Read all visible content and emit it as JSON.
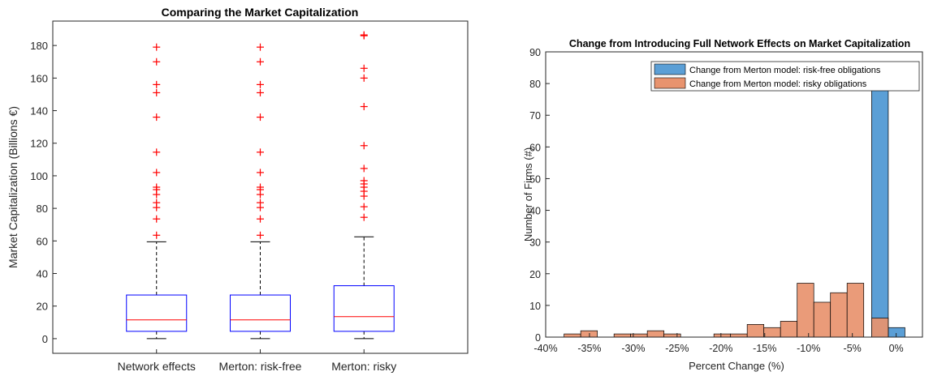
{
  "chart_data": [
    {
      "type": "box",
      "title": "Comparing the Market Capitalization",
      "xlabel": "",
      "ylabel": "Market Capitalization (Billions €)",
      "ylim": [
        -9,
        195
      ],
      "yticks": [
        0,
        20,
        40,
        60,
        80,
        100,
        120,
        140,
        160,
        180
      ],
      "categories": [
        "Network effects",
        "Merton: risk-free",
        "Merton: risky"
      ],
      "boxes": [
        {
          "name": "Network effects",
          "whisker_low": 0,
          "q1": 4.5,
          "median": 11.5,
          "q3": 26.8,
          "whisker_high": 59.5,
          "outliers": [
            63.5,
            73.5,
            80.5,
            83.5,
            88.5,
            91.5,
            93,
            102,
            114.5,
            136,
            151,
            156,
            170,
            179
          ]
        },
        {
          "name": "Merton: risk-free",
          "whisker_low": 0,
          "q1": 4.5,
          "median": 11.5,
          "q3": 26.8,
          "whisker_high": 59.5,
          "outliers": [
            63.5,
            73.5,
            80.5,
            83.5,
            88.5,
            91.5,
            93,
            102,
            114.5,
            136,
            151,
            156,
            170,
            179
          ]
        },
        {
          "name": "Merton: risky",
          "whisker_low": 0,
          "q1": 4.5,
          "median": 13.5,
          "q3": 32.5,
          "whisker_high": 62.5,
          "outliers": [
            74.5,
            81,
            87.5,
            90.5,
            93,
            95,
            97,
            104.5,
            118.5,
            142.5,
            160,
            166,
            186,
            186.5
          ]
        }
      ],
      "colors": {
        "box": "#0000ff",
        "median": "#ff0000",
        "outlier": "#ff0000",
        "whisker": "#000000"
      }
    },
    {
      "type": "histogram",
      "title": "Change from Introducing Full Network Effects on Market Capitalization",
      "xlabel": "Percent Change (%)",
      "ylabel": "Number of Firms (#)",
      "xlim": [
        -40,
        3
      ],
      "ylim": [
        0,
        90
      ],
      "xticks": [
        -40,
        -35,
        -30,
        -25,
        -20,
        -15,
        -10,
        -5,
        0
      ],
      "xtick_labels": [
        "-40%",
        "-35%",
        "-30%",
        "-25%",
        "-20%",
        "-15%",
        "-10%",
        "-5%",
        "0%"
      ],
      "yticks": [
        0,
        10,
        20,
        30,
        40,
        50,
        60,
        70,
        80,
        90
      ],
      "legend_position": "top-right",
      "series": [
        {
          "name": "Change from Merton model: risk-free obligations",
          "color": "#0072bd",
          "fill": "#5b9fd6",
          "bins": [
            {
              "x0": -2.8,
              "x1": -0.9,
              "count": 86
            },
            {
              "x0": -0.9,
              "x1": 1.0,
              "count": 3
            }
          ]
        },
        {
          "name": "Change from Merton model: risky obligations",
          "color": "#d95319",
          "fill": "#e8936e",
          "bins": [
            {
              "x0": -37.9,
              "x1": -36.0,
              "count": 1
            },
            {
              "x0": -36.0,
              "x1": -34.1,
              "count": 2
            },
            {
              "x0": -34.1,
              "x1": -32.2,
              "count": 0
            },
            {
              "x0": -32.2,
              "x1": -30.3,
              "count": 1
            },
            {
              "x0": -30.3,
              "x1": -28.4,
              "count": 1
            },
            {
              "x0": -28.4,
              "x1": -26.5,
              "count": 2
            },
            {
              "x0": -26.5,
              "x1": -24.6,
              "count": 1
            },
            {
              "x0": -24.6,
              "x1": -22.7,
              "count": 0
            },
            {
              "x0": -22.7,
              "x1": -20.8,
              "count": 0
            },
            {
              "x0": -20.8,
              "x1": -18.9,
              "count": 1
            },
            {
              "x0": -18.9,
              "x1": -17.0,
              "count": 1
            },
            {
              "x0": -17.0,
              "x1": -15.1,
              "count": 4
            },
            {
              "x0": -15.1,
              "x1": -13.2,
              "count": 3
            },
            {
              "x0": -13.2,
              "x1": -11.3,
              "count": 5
            },
            {
              "x0": -11.3,
              "x1": -9.4,
              "count": 17
            },
            {
              "x0": -9.4,
              "x1": -7.5,
              "count": 11
            },
            {
              "x0": -7.5,
              "x1": -5.6,
              "count": 14
            },
            {
              "x0": -5.6,
              "x1": -3.7,
              "count": 17
            },
            {
              "x0": -2.8,
              "x1": -0.9,
              "count": 6
            }
          ]
        }
      ]
    }
  ]
}
